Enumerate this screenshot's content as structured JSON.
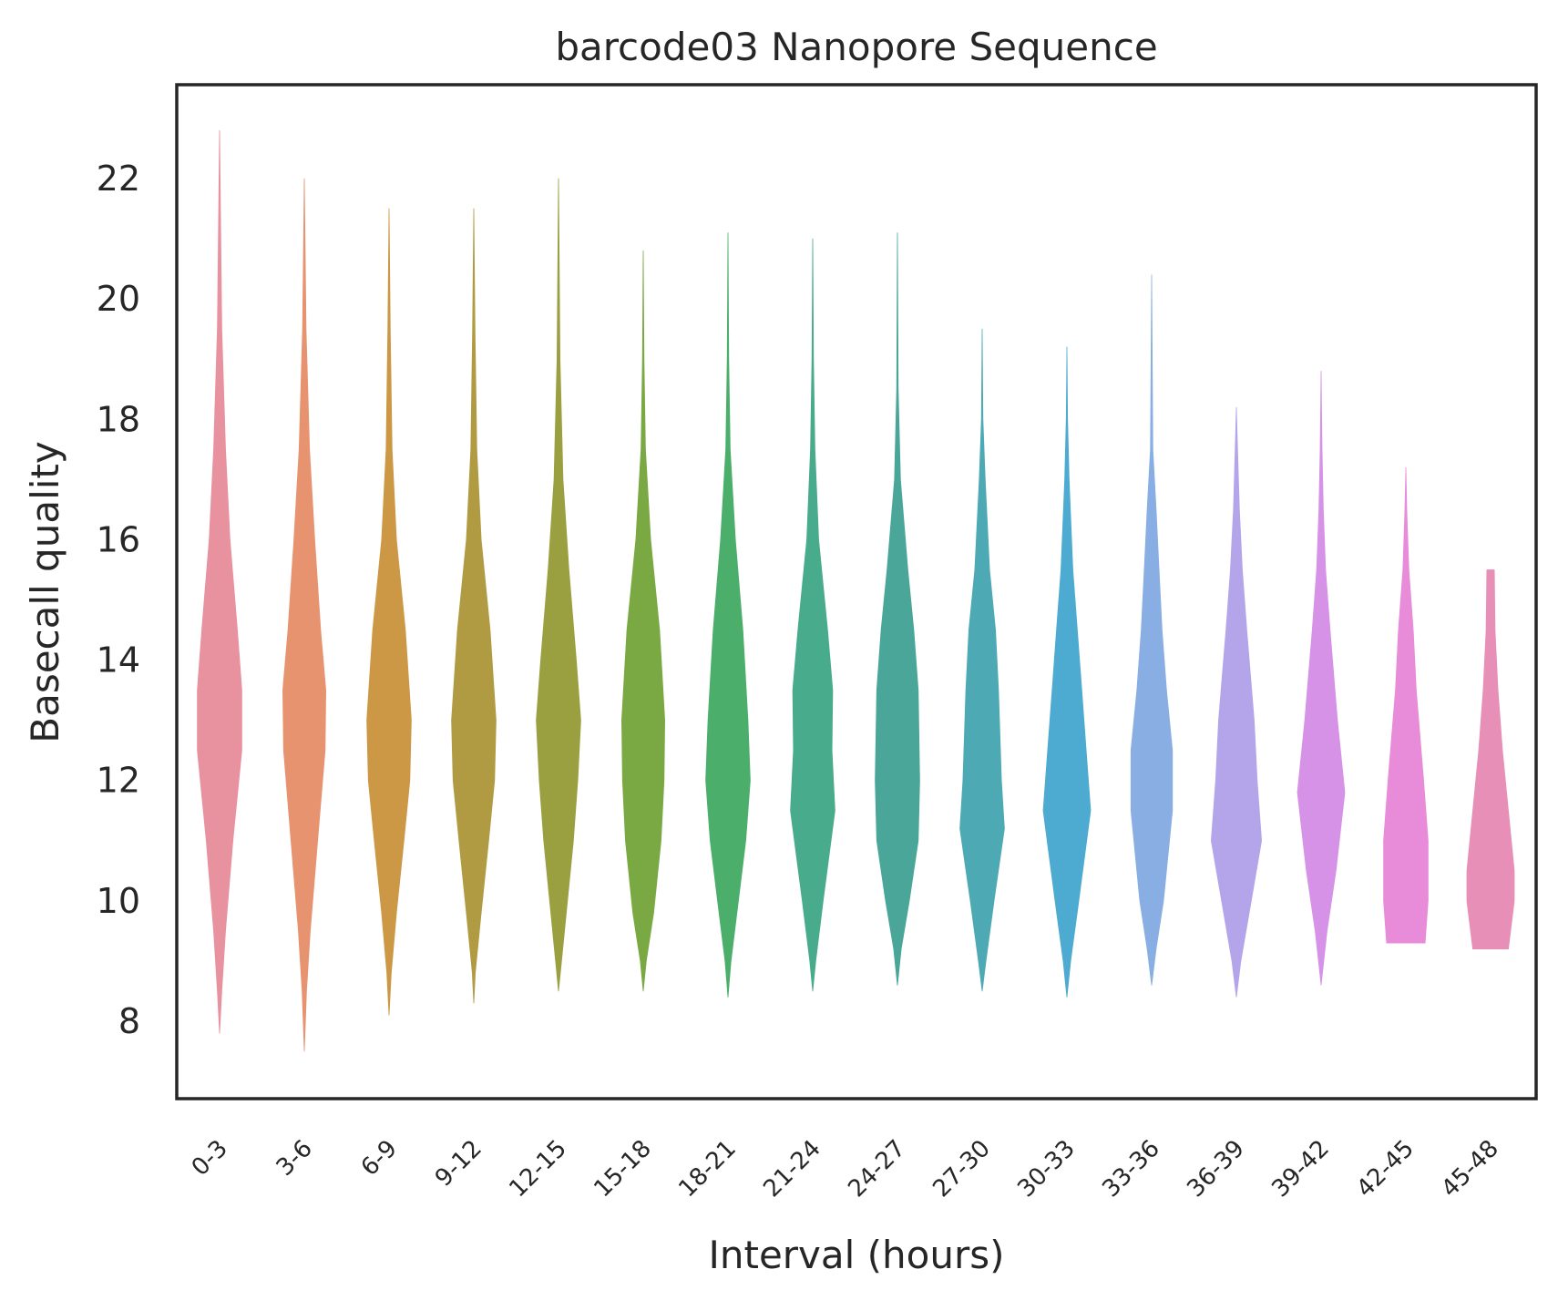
{
  "chart_data": {
    "type": "violin",
    "title": "barcode03 Nanopore Sequence",
    "xlabel": "Interval (hours)",
    "ylabel": "Basecall quality",
    "ylim": [
      6.7,
      23.6
    ],
    "yticks": [
      8,
      10,
      12,
      14,
      16,
      18,
      20,
      22
    ],
    "grid": false,
    "legend": "none",
    "categories": [
      "0-3",
      "3-6",
      "6-9",
      "9-12",
      "12-15",
      "15-18",
      "18-21",
      "21-24",
      "24-27",
      "27-30",
      "30-33",
      "33-36",
      "36-39",
      "39-42",
      "42-45",
      "45-48"
    ],
    "colors": [
      "#e8919f",
      "#e8936f",
      "#cc9845",
      "#b19b42",
      "#9a9f40",
      "#7aa944",
      "#4baf6b",
      "#48ab8b",
      "#49a699",
      "#4daab5",
      "#4daad1",
      "#88aee3",
      "#b4a5ea",
      "#d592e6",
      "#e88bd8",
      "#e88fb7"
    ],
    "violins": [
      {
        "min": 7.8,
        "max": 22.8,
        "profile": [
          [
            7.8,
            0
          ],
          [
            8.5,
            1.5
          ],
          [
            9.5,
            4
          ],
          [
            11,
            9
          ],
          [
            12.5,
            15
          ],
          [
            13.5,
            15
          ],
          [
            14.5,
            12
          ],
          [
            16,
            7
          ],
          [
            17.5,
            4
          ],
          [
            19.5,
            1.5
          ],
          [
            22.8,
            0
          ]
        ]
      },
      {
        "min": 7.5,
        "max": 22.0,
        "profile": [
          [
            7.5,
            0
          ],
          [
            8.5,
            1.5
          ],
          [
            9.5,
            4
          ],
          [
            11,
            9
          ],
          [
            12.5,
            14
          ],
          [
            13.5,
            14.5
          ],
          [
            14.5,
            11
          ],
          [
            16,
            7
          ],
          [
            17.5,
            3.5
          ],
          [
            19.5,
            1.2
          ],
          [
            22,
            0
          ]
        ]
      },
      {
        "min": 8.1,
        "max": 21.5,
        "profile": [
          [
            8.1,
            0
          ],
          [
            8.8,
            1.5
          ],
          [
            9.8,
            5
          ],
          [
            11,
            10
          ],
          [
            12,
            14
          ],
          [
            13,
            15
          ],
          [
            14.5,
            11
          ],
          [
            16,
            5
          ],
          [
            17.5,
            2
          ],
          [
            19.5,
            0.8
          ],
          [
            21.5,
            0
          ]
        ]
      },
      {
        "min": 8.3,
        "max": 21.5,
        "profile": [
          [
            8.3,
            0
          ],
          [
            8.8,
            1
          ],
          [
            9.8,
            5
          ],
          [
            11,
            10
          ],
          [
            12,
            14
          ],
          [
            13,
            15
          ],
          [
            14.5,
            11
          ],
          [
            16,
            5
          ],
          [
            17.5,
            2
          ],
          [
            19.5,
            0.8
          ],
          [
            21.5,
            0
          ]
        ]
      },
      {
        "min": 8.5,
        "max": 22.0,
        "profile": [
          [
            8.5,
            0
          ],
          [
            9,
            2
          ],
          [
            10,
            6
          ],
          [
            11,
            10
          ],
          [
            12,
            13
          ],
          [
            13,
            15
          ],
          [
            14,
            12
          ],
          [
            15.5,
            7
          ],
          [
            17,
            3
          ],
          [
            19,
            1
          ],
          [
            22,
            0
          ]
        ]
      },
      {
        "min": 8.5,
        "max": 20.8,
        "profile": [
          [
            8.5,
            0
          ],
          [
            9,
            2
          ],
          [
            9.8,
            7
          ],
          [
            11,
            12
          ],
          [
            12,
            14
          ],
          [
            13,
            14.5
          ],
          [
            14.5,
            11
          ],
          [
            16,
            5
          ],
          [
            17.5,
            1.5
          ],
          [
            19,
            0.5
          ],
          [
            20.8,
            0
          ]
        ]
      },
      {
        "min": 8.4,
        "max": 21.1,
        "profile": [
          [
            8.4,
            0
          ],
          [
            9,
            2
          ],
          [
            10,
            7
          ],
          [
            11,
            12
          ],
          [
            12,
            15
          ],
          [
            13,
            13.5
          ],
          [
            14.5,
            10
          ],
          [
            16,
            5
          ],
          [
            17.5,
            1.5
          ],
          [
            19,
            0.5
          ],
          [
            21.1,
            0
          ]
        ]
      },
      {
        "min": 8.5,
        "max": 21.0,
        "profile": [
          [
            8.5,
            0
          ],
          [
            9,
            2
          ],
          [
            10,
            7
          ],
          [
            11.5,
            15
          ],
          [
            12.5,
            13
          ],
          [
            13.5,
            13.5
          ],
          [
            14.5,
            10
          ],
          [
            16,
            4
          ],
          [
            17.5,
            1.5
          ],
          [
            19,
            0.5
          ],
          [
            21,
            0
          ]
        ]
      },
      {
        "min": 8.6,
        "max": 21.1,
        "profile": [
          [
            8.6,
            0
          ],
          [
            9.2,
            2.5
          ],
          [
            10,
            8
          ],
          [
            11,
            14
          ],
          [
            12,
            15
          ],
          [
            13.5,
            14
          ],
          [
            14.5,
            11
          ],
          [
            15.5,
            7
          ],
          [
            17,
            2
          ],
          [
            18.5,
            0.5
          ],
          [
            21.1,
            0
          ]
        ]
      },
      {
        "min": 8.5,
        "max": 19.5,
        "profile": [
          [
            8.5,
            0
          ],
          [
            9,
            2.5
          ],
          [
            10,
            8
          ],
          [
            11.2,
            15
          ],
          [
            12,
            13
          ],
          [
            13.5,
            11
          ],
          [
            14.5,
            9
          ],
          [
            15.5,
            5
          ],
          [
            17,
            2
          ],
          [
            18,
            0.5
          ],
          [
            19.5,
            0
          ]
        ]
      },
      {
        "min": 8.4,
        "max": 19.2,
        "profile": [
          [
            8.4,
            0
          ],
          [
            9,
            2.5
          ],
          [
            10,
            8
          ],
          [
            11.5,
            16
          ],
          [
            12.5,
            13
          ],
          [
            13.5,
            10
          ],
          [
            14.5,
            7
          ],
          [
            15.5,
            4
          ],
          [
            17,
            1.5
          ],
          [
            18,
            0.4
          ],
          [
            19.2,
            0
          ]
        ]
      },
      {
        "min": 8.6,
        "max": 20.4,
        "profile": [
          [
            8.6,
            0
          ],
          [
            9.2,
            3
          ],
          [
            10,
            8
          ],
          [
            11.5,
            14
          ],
          [
            12.5,
            14
          ],
          [
            13.5,
            10
          ],
          [
            14.5,
            7
          ],
          [
            15.5,
            5
          ],
          [
            16.5,
            3
          ],
          [
            17.5,
            0.8
          ],
          [
            20.4,
            0
          ]
        ]
      },
      {
        "min": 8.4,
        "max": 18.2,
        "profile": [
          [
            8.4,
            0
          ],
          [
            9,
            3
          ],
          [
            10,
            10
          ],
          [
            11,
            17
          ],
          [
            12,
            14
          ],
          [
            13,
            12
          ],
          [
            14.5,
            7
          ],
          [
            15.5,
            4
          ],
          [
            16.5,
            2
          ],
          [
            17.5,
            0.8
          ],
          [
            18.2,
            0
          ]
        ]
      },
      {
        "min": 8.6,
        "max": 18.8,
        "profile": [
          [
            8.6,
            0
          ],
          [
            9.5,
            4
          ],
          [
            10.5,
            10
          ],
          [
            11.8,
            16
          ],
          [
            13,
            11
          ],
          [
            14.5,
            6
          ],
          [
            15.5,
            3
          ],
          [
            16.5,
            1.5
          ],
          [
            17.5,
            0.6
          ],
          [
            18.8,
            0
          ]
        ]
      },
      {
        "min": 9.3,
        "max": 17.2,
        "profile": [
          [
            9.3,
            13
          ],
          [
            10,
            15
          ],
          [
            11,
            15
          ],
          [
            12,
            12
          ],
          [
            13.5,
            7
          ],
          [
            14.5,
            5
          ],
          [
            15.5,
            2
          ],
          [
            16.5,
            0.6
          ],
          [
            17.2,
            0
          ]
        ]
      },
      {
        "min": 9.2,
        "max": 15.5,
        "profile": [
          [
            9.2,
            12
          ],
          [
            10,
            16
          ],
          [
            10.5,
            16
          ],
          [
            11.5,
            12
          ],
          [
            12.5,
            8
          ],
          [
            13.5,
            5
          ],
          [
            14.5,
            3
          ],
          [
            15.5,
            2.5
          ]
        ]
      }
    ]
  }
}
